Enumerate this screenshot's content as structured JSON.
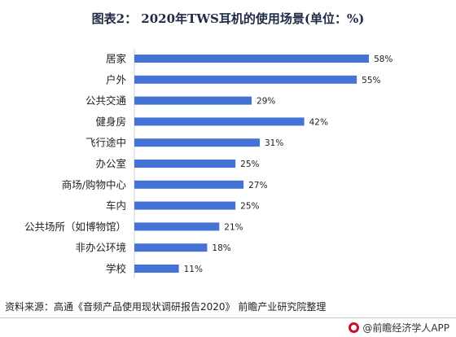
{
  "page": {
    "title": "图表2： 2020年TWS耳机的使用场景(单位：%)",
    "source": "资料来源：高通《音频产品使用现状调研报告2020》 前瞻产业研究院整理",
    "footer_brand": "@前瞻经济学人APP"
  },
  "colors": {
    "bar": "#4472d6",
    "title": "#1f2a44"
  },
  "chart_data": {
    "type": "bar",
    "orientation": "horizontal",
    "title": "图表2： 2020年TWS耳机的使用场景(单位：%)",
    "xlabel": "",
    "ylabel": "",
    "xlim": [
      0,
      60
    ],
    "grid": false,
    "categories": [
      "居家",
      "户外",
      "公共交通",
      "健身房",
      "飞行途中",
      "办公室",
      "商场/购物中心",
      "车内",
      "公共场所（如博物馆）",
      "非办公环境",
      "学校"
    ],
    "values": [
      58,
      55,
      29,
      42,
      31,
      25,
      27,
      25,
      21,
      18,
      11
    ],
    "value_labels": [
      "58%",
      "55%",
      "29%",
      "42%",
      "31%",
      "25%",
      "27%",
      "25%",
      "21%",
      "18%",
      "11%"
    ]
  }
}
